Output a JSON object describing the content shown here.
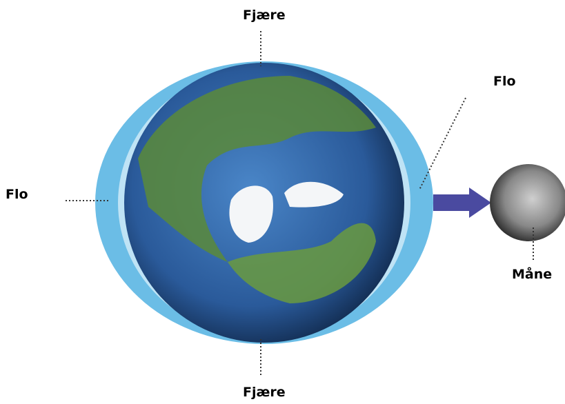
{
  "labels": {
    "top": "Fjære",
    "bottom": "Fjære",
    "left": "Flo",
    "right": "Flo",
    "moon": "Måne"
  }
}
